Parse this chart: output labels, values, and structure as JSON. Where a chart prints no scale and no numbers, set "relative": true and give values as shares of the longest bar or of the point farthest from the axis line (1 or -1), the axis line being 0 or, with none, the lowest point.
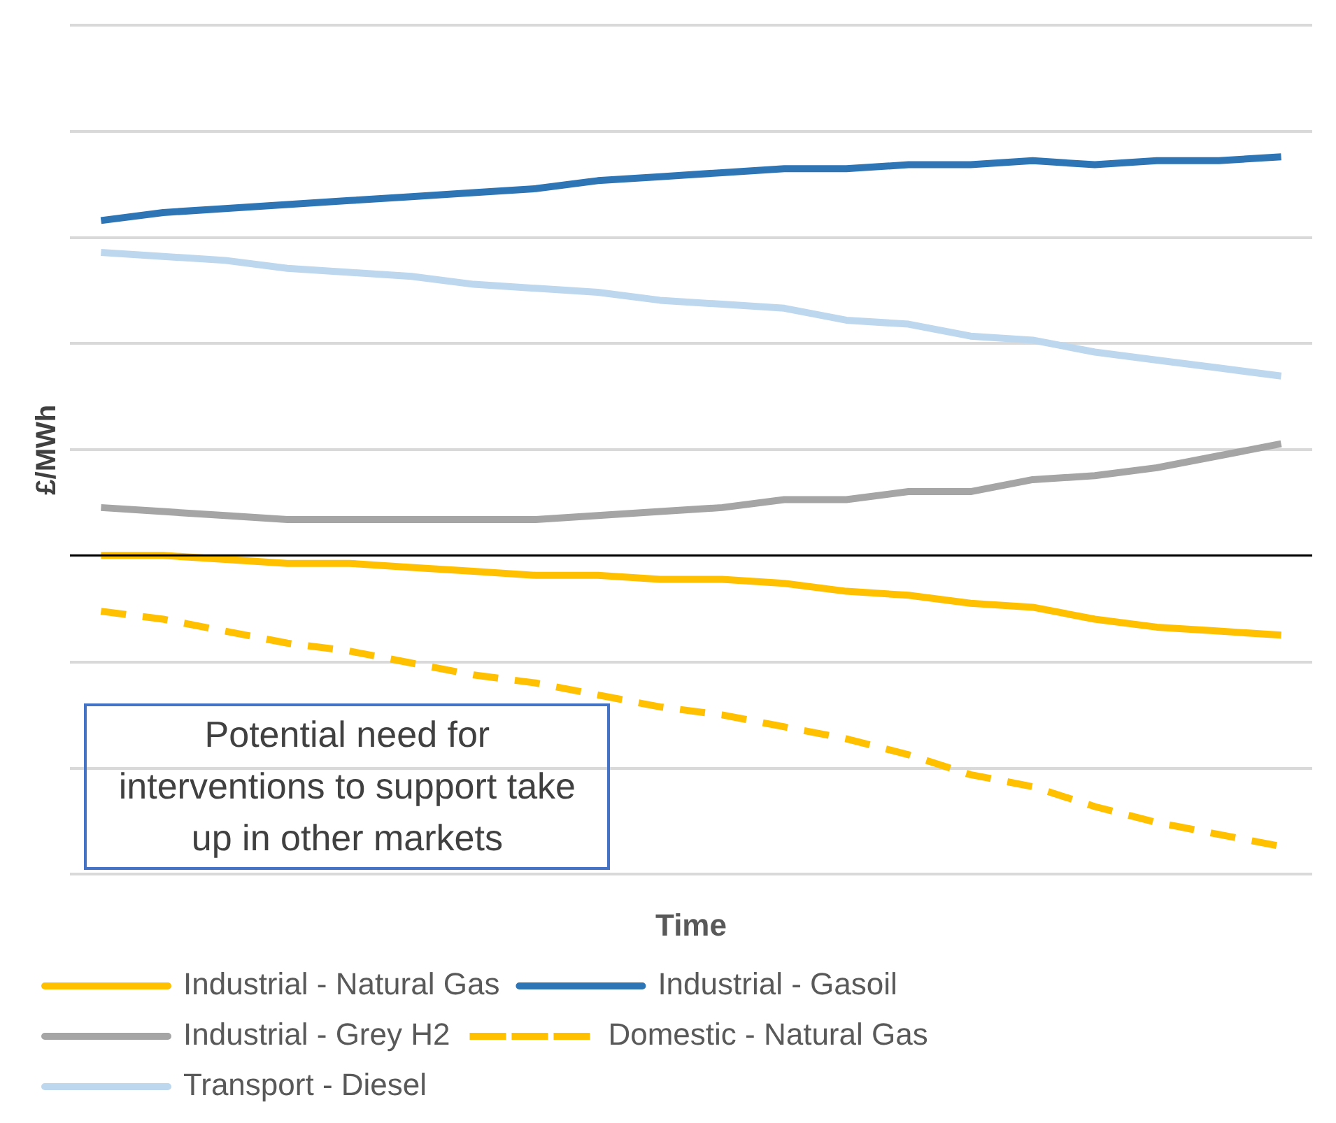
{
  "chart_data": {
    "type": "line",
    "relative": true,
    "xlabel": "Time",
    "ylabel": "£/MWh",
    "grid": "y",
    "legend": "bottom",
    "marker": "none",
    "categories": [
      null,
      null,
      null,
      null,
      null,
      null,
      null,
      null,
      null,
      null,
      null,
      null,
      null,
      null,
      null,
      null,
      null,
      null,
      null,
      null
    ],
    "series": [
      {
        "name": "Industrial - Natural Gas",
        "color": "#ffc000",
        "line_style": "solid",
        "values": [
          0,
          0,
          -0.01,
          -0.02,
          -0.02,
          -0.03,
          -0.04,
          -0.05,
          -0.05,
          -0.06,
          -0.06,
          -0.07,
          -0.09,
          -0.1,
          -0.12,
          -0.13,
          -0.16,
          -0.18,
          -0.19,
          -0.2
        ]
      },
      {
        "name": "Industrial - Gasoil",
        "color": "#2e75b6",
        "line_style": "solid",
        "values": [
          0.84,
          0.86,
          0.87,
          0.88,
          0.89,
          0.9,
          0.91,
          0.92,
          0.94,
          0.95,
          0.96,
          0.97,
          0.97,
          0.98,
          0.98,
          0.99,
          0.98,
          0.99,
          0.99,
          1
        ]
      },
      {
        "name": "Industrial - Grey H2",
        "color": "#a5a5a5",
        "line_style": "solid",
        "values": [
          0.12,
          0.11,
          0.1,
          0.09,
          0.09,
          0.09,
          0.09,
          0.09,
          0.1,
          0.11,
          0.12,
          0.14,
          0.14,
          0.16,
          0.16,
          0.19,
          0.2,
          0.22,
          0.25,
          0.28
        ]
      },
      {
        "name": "Domestic - Natural Gas",
        "color": "#ffc000",
        "line_style": "dashed",
        "values": [
          -0.14,
          -0.16,
          -0.19,
          -0.22,
          -0.24,
          -0.27,
          -0.3,
          -0.32,
          -0.35,
          -0.38,
          -0.4,
          -0.43,
          -0.46,
          -0.5,
          -0.55,
          -0.58,
          -0.63,
          -0.67,
          -0.7,
          -0.73
        ]
      },
      {
        "name": "Transport - Diesel",
        "color": "#bdd7ee",
        "line_style": "solid",
        "values": [
          0.76,
          0.75,
          0.74,
          0.72,
          0.71,
          0.7,
          0.68,
          0.67,
          0.66,
          0.64,
          0.63,
          0.62,
          0.59,
          0.58,
          0.55,
          0.54,
          0.51,
          0.49,
          0.47,
          0.45
        ]
      }
    ],
    "annotations": [
      "Potential need for interventions to support take up in other markets"
    ]
  }
}
